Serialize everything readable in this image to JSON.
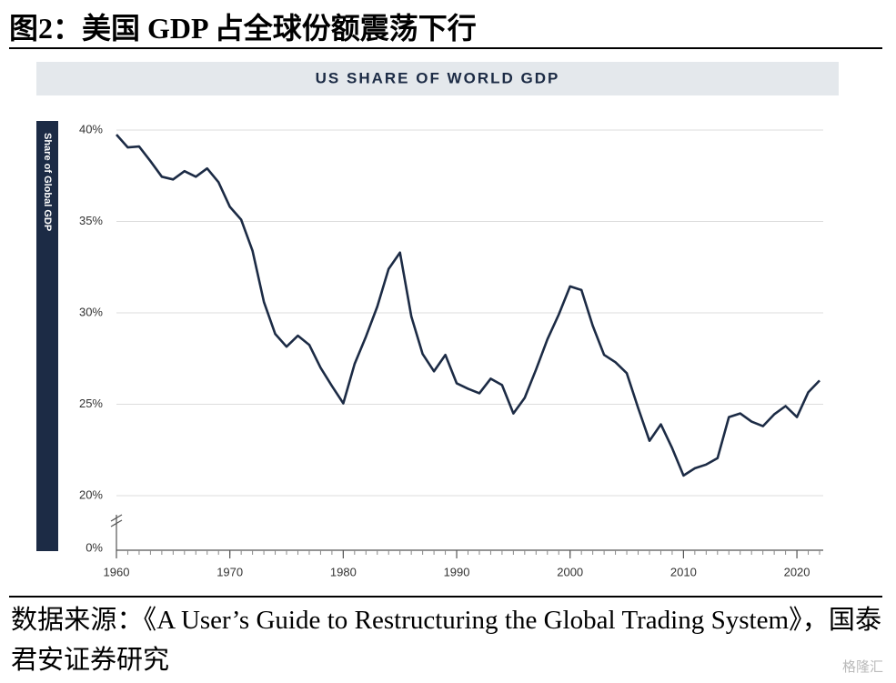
{
  "heading": "图2：美国 GDP 占全球份额震荡下行",
  "source": "数据来源：《A User’s Guide to Restructuring the Global Trading System》，国泰君安证券研究",
  "watermark": "格隆汇",
  "chart_data": {
    "type": "line",
    "title": "US SHARE OF WORLD GDP",
    "y_label": "Share of Global GDP",
    "x": [
      1960,
      1961,
      1962,
      1963,
      1964,
      1965,
      1966,
      1967,
      1968,
      1969,
      1970,
      1971,
      1972,
      1973,
      1974,
      1975,
      1976,
      1977,
      1978,
      1979,
      1980,
      1981,
      1982,
      1983,
      1984,
      1985,
      1986,
      1987,
      1988,
      1989,
      1990,
      1991,
      1992,
      1993,
      1994,
      1995,
      1996,
      1997,
      1998,
      1999,
      2000,
      2001,
      2002,
      2003,
      2004,
      2005,
      2006,
      2007,
      2008,
      2009,
      2010,
      2011,
      2012,
      2013,
      2014,
      2015,
      2016,
      2017,
      2018,
      2019,
      2020,
      2021,
      2022
    ],
    "series": [
      {
        "name": "US share of world GDP",
        "color": "#1c2b45",
        "values": [
          39.75,
          39.05,
          39.1,
          38.3,
          37.45,
          37.3,
          37.75,
          37.45,
          37.9,
          37.15,
          35.8,
          35.1,
          33.4,
          30.6,
          28.85,
          28.15,
          28.75,
          28.25,
          27.0,
          26.0,
          25.05,
          27.2,
          28.7,
          30.35,
          32.4,
          33.3,
          29.8,
          27.75,
          26.8,
          27.7,
          26.15,
          25.85,
          25.6,
          26.4,
          26.05,
          24.5,
          25.35,
          26.9,
          28.55,
          29.9,
          31.45,
          31.25,
          29.3,
          27.7,
          27.3,
          26.7,
          24.8,
          23.0,
          23.9,
          22.6,
          21.1,
          21.5,
          21.7,
          22.05,
          24.3,
          24.5,
          24.05,
          23.8,
          24.45,
          24.9,
          24.3,
          25.65,
          26.3
        ]
      }
    ],
    "xlim": [
      1960,
      2022
    ],
    "xticks": [
      1960,
      1970,
      1980,
      1990,
      2000,
      2010,
      2020
    ],
    "ylim": [
      0,
      40
    ],
    "axis_break": [
      0,
      20
    ],
    "yticks": [
      {
        "value": 0,
        "label": "0%"
      },
      {
        "value": 20,
        "label": "20%"
      },
      {
        "value": 25,
        "label": "25%"
      },
      {
        "value": 30,
        "label": "30%"
      },
      {
        "value": 35,
        "label": "35%"
      },
      {
        "value": 40,
        "label": "40%"
      }
    ],
    "grid": true
  }
}
